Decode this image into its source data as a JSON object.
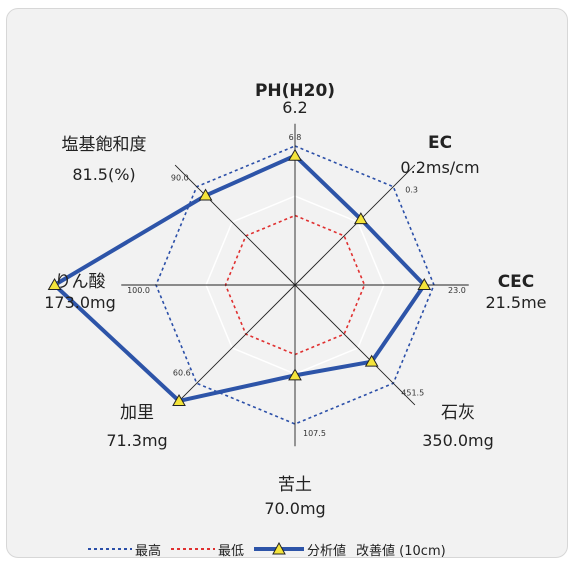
{
  "chart_data": {
    "type": "radar",
    "axes": [
      {
        "id": "ph",
        "name": "PH(H20)",
        "value_text": "6.2",
        "max_tick": "6.8",
        "value": 6.2,
        "max": 6.8,
        "ratio": 0.93
      },
      {
        "id": "ec",
        "name": "EC",
        "value_text": "0.2ms/cm",
        "max_tick": "0.3",
        "value": 0.2,
        "max": 0.3,
        "ratio": 0.67
      },
      {
        "id": "cec",
        "name": "CEC",
        "value_text": "21.5me",
        "max_tick": "23.0",
        "value": 21.5,
        "max": 23.0,
        "ratio": 0.93
      },
      {
        "id": "lime",
        "name": "石灰",
        "value_text": "350.0mg",
        "max_tick": "451.5",
        "value": 350.0,
        "max": 451.5,
        "ratio": 0.78
      },
      {
        "id": "magnesia",
        "name": "苦土",
        "value_text": "70.0mg",
        "max_tick": "107.5",
        "value": 70.0,
        "max": 107.5,
        "ratio": 0.65
      },
      {
        "id": "potash",
        "name": "加里",
        "value_text": "71.3mg",
        "max_tick": "60.6",
        "value": 71.3,
        "max": 60.6,
        "ratio": 1.18
      },
      {
        "id": "phosphoric",
        "name": "りん酸",
        "value_text": "173.0mg",
        "max_tick": "100.0",
        "value": 173.0,
        "max": 100.0,
        "ratio": 1.73
      },
      {
        "id": "base_sat",
        "name": "塩基飽和度",
        "value_text": "81.5(%)",
        "max_tick": "90.0",
        "value": 81.5,
        "max": 90.0,
        "ratio": 0.91
      }
    ],
    "max_ring_ratio": 1.0,
    "min_ring_ratio": 0.5,
    "improved_ring_ratio": 0.64,
    "colors": {
      "max": "#2b4fa8",
      "min": "#e03030",
      "analysis": "#2d54a8",
      "marker_fill": "#f4e43a",
      "improved": "#ffffff",
      "axis": "#222222"
    },
    "legend": {
      "max_label": "最高",
      "min_label": "最低",
      "analysis_label": "分析値",
      "improved_label": "改善値 (10cm)"
    }
  }
}
